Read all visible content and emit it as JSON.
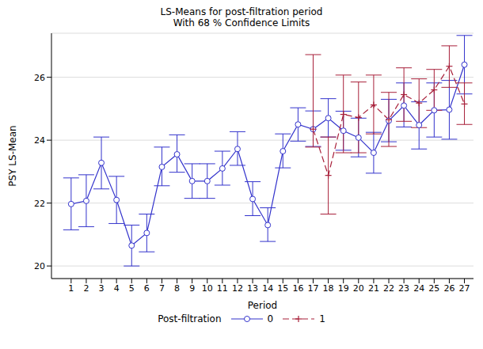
{
  "chart_data": {
    "type": "line",
    "title": "LS-Means for post-filtration period",
    "subtitle": "With 68 % Confidence Limits",
    "xlabel": "Period",
    "ylabel": "PSY LS-Mean",
    "legend_title": "Post-filtration",
    "legend": "bottom",
    "grid": true,
    "x": [
      1,
      2,
      3,
      4,
      5,
      6,
      7,
      8,
      9,
      10,
      11,
      12,
      13,
      14,
      15,
      16,
      17,
      18,
      19,
      20,
      21,
      22,
      23,
      24,
      25,
      26,
      27
    ],
    "xlim": [
      -0.3,
      27.6
    ],
    "xticks": [
      1,
      2,
      3,
      4,
      5,
      6,
      7,
      8,
      9,
      10,
      11,
      12,
      13,
      14,
      15,
      16,
      17,
      18,
      19,
      20,
      21,
      22,
      23,
      24,
      25,
      26,
      27
    ],
    "ylim": [
      19.6,
      27.4
    ],
    "yticks": [
      20,
      22,
      24,
      26
    ],
    "series": [
      {
        "name": "0",
        "color": "#3333cc",
        "marker": "circle",
        "line_style": "solid",
        "values": [
          21.97,
          22.07,
          23.28,
          22.1,
          20.65,
          21.05,
          23.15,
          23.55,
          22.7,
          22.7,
          23.1,
          23.72,
          22.13,
          21.3,
          23.65,
          24.5,
          24.35,
          24.7,
          24.3,
          24.08,
          23.6,
          24.62,
          25.1,
          24.48,
          24.95,
          24.97,
          26.4
        ],
        "lower": [
          21.15,
          21.25,
          22.45,
          21.35,
          20.0,
          20.45,
          22.55,
          22.98,
          22.15,
          22.15,
          22.57,
          23.2,
          21.6,
          20.78,
          23.12,
          23.97,
          23.8,
          24.1,
          23.68,
          23.47,
          22.95,
          23.95,
          24.42,
          23.72,
          24.1,
          24.03,
          25.47
        ],
        "upper": [
          22.8,
          22.9,
          24.1,
          22.85,
          21.3,
          21.65,
          23.78,
          24.17,
          23.25,
          23.25,
          23.65,
          24.27,
          22.68,
          21.85,
          24.2,
          25.03,
          24.93,
          25.32,
          24.92,
          24.7,
          24.25,
          25.3,
          25.82,
          25.22,
          25.82,
          25.9,
          27.33
        ]
      },
      {
        "name": "1",
        "color": "#a8203a",
        "marker": "plus",
        "line_style": "dashed",
        "values": [
          null,
          null,
          null,
          null,
          null,
          null,
          null,
          null,
          null,
          null,
          null,
          null,
          null,
          null,
          null,
          null,
          24.35,
          22.88,
          24.82,
          24.72,
          25.12,
          24.65,
          25.45,
          25.18,
          25.6,
          26.35,
          25.15
        ],
        "lower": [
          null,
          null,
          null,
          null,
          null,
          null,
          null,
          null,
          null,
          null,
          null,
          null,
          null,
          null,
          null,
          null,
          23.78,
          21.65,
          23.6,
          23.6,
          24.2,
          23.8,
          24.6,
          24.4,
          24.95,
          25.68,
          24.5
        ],
        "upper": [
          null,
          null,
          null,
          null,
          null,
          null,
          null,
          null,
          null,
          null,
          null,
          null,
          null,
          null,
          null,
          null,
          26.72,
          24.1,
          26.07,
          25.85,
          26.07,
          25.52,
          26.3,
          25.95,
          26.25,
          27.0,
          25.82
        ]
      }
    ]
  }
}
